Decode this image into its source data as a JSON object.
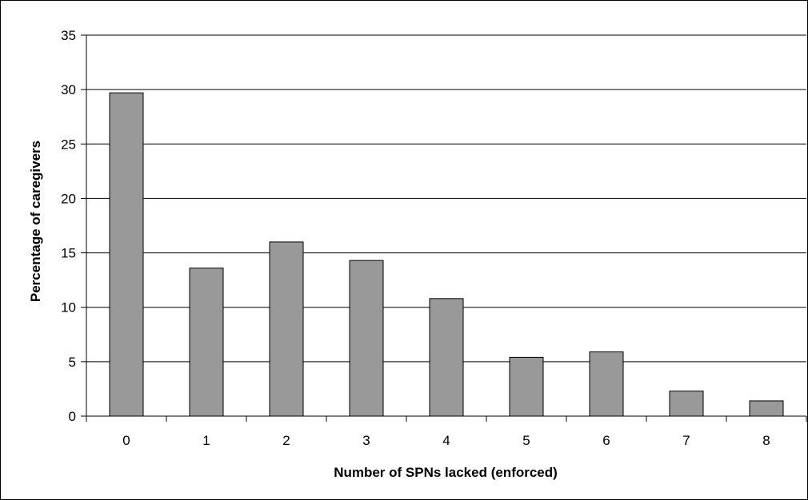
{
  "chart_data": {
    "type": "bar",
    "title": "",
    "xlabel": "Number of SPNs lacked (enforced)",
    "ylabel": "Percentage of caregivers",
    "categories": [
      "0",
      "1",
      "2",
      "3",
      "4",
      "5",
      "6",
      "7",
      "8"
    ],
    "values": [
      29.7,
      13.6,
      16.0,
      14.3,
      10.8,
      5.4,
      5.9,
      2.3,
      1.4
    ],
    "ylim": [
      0,
      35
    ],
    "yticks": [
      "0",
      "5",
      "10",
      "15",
      "20",
      "25",
      "30",
      "35"
    ],
    "grid": true,
    "legend": "none",
    "colors": {
      "bar_fill": "#999999",
      "bar_stroke": "#000000",
      "grid": "#000000"
    }
  }
}
